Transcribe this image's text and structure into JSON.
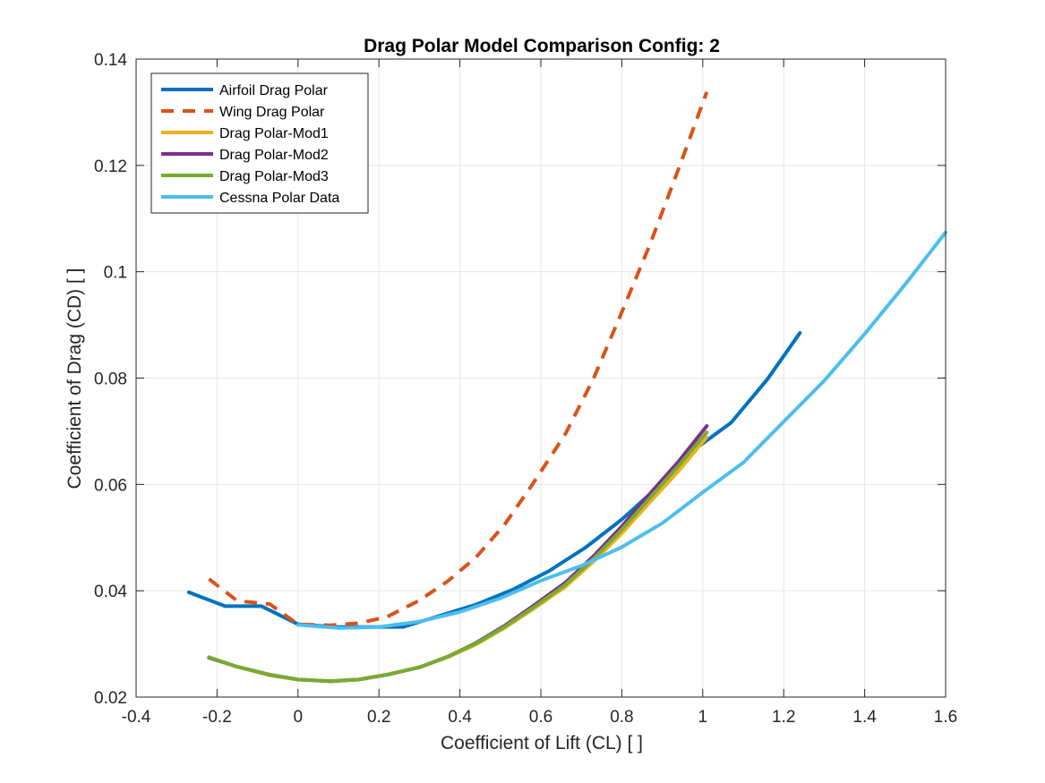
{
  "chart_data": {
    "type": "line",
    "title": "Drag Polar Model Comparison Config: 2",
    "xlabel": "Coefficient of Lift (CL) [ ]",
    "ylabel": "Coefficient of Drag (CD) [ ]",
    "xlim": [
      -0.4,
      1.6
    ],
    "ylim": [
      0.02,
      0.14
    ],
    "xticks": [
      -0.4,
      -0.2,
      0,
      0.2,
      0.4,
      0.6,
      0.8,
      1,
      1.2,
      1.4,
      1.6
    ],
    "xtick_labels": [
      "-0.4",
      "-0.2",
      "0",
      "0.2",
      "0.4",
      "0.6",
      "0.8",
      "1",
      "1.2",
      "1.4",
      "1.6"
    ],
    "yticks": [
      0.02,
      0.04,
      0.06,
      0.08,
      0.1,
      0.12,
      0.14
    ],
    "ytick_labels": [
      "0.02",
      "0.04",
      "0.06",
      "0.08",
      "0.1",
      "0.12",
      "0.14"
    ],
    "grid": true,
    "legend_position": "top-left",
    "series": [
      {
        "name": "Airfoil Drag Polar",
        "color": "#0072BD",
        "style": "solid",
        "x": [
          -0.27,
          -0.18,
          -0.09,
          0,
          0.09,
          0.18,
          0.26,
          0.35,
          0.44,
          0.53,
          0.62,
          0.71,
          0.8,
          0.89,
          0.98,
          1.07,
          1.16,
          1.24
        ],
        "y": [
          0.0397,
          0.0371,
          0.0371,
          0.0337,
          0.0332,
          0.0332,
          0.0332,
          0.0353,
          0.0374,
          0.0402,
          0.0437,
          0.0481,
          0.0534,
          0.0596,
          0.0666,
          0.0716,
          0.0798,
          0.0885
        ]
      },
      {
        "name": "Wing Drag Polar",
        "color": "#D95319",
        "style": "dashed",
        "x": [
          -0.22,
          -0.15,
          -0.07,
          0,
          0.08,
          0.15,
          0.22,
          0.3,
          0.37,
          0.44,
          0.51,
          0.58,
          0.66,
          0.73,
          0.8,
          0.87,
          0.94,
          1.01
        ],
        "y": [
          0.0422,
          0.0381,
          0.0375,
          0.0337,
          0.0335,
          0.0339,
          0.0351,
          0.0382,
          0.0418,
          0.0463,
          0.0524,
          0.0601,
          0.0694,
          0.0799,
          0.0924,
          0.1052,
          0.1193,
          0.1338
        ]
      },
      {
        "name": "Drag Polar-Mod1",
        "color": "#EDB120",
        "style": "solid",
        "x": [
          -0.22,
          -0.15,
          -0.07,
          0,
          0.08,
          0.15,
          0.22,
          0.3,
          0.37,
          0.44,
          0.51,
          0.58,
          0.66,
          0.73,
          0.8,
          0.87,
          0.94,
          1.01
        ],
        "y": [
          0.0274,
          0.0257,
          0.0241,
          0.0233,
          0.023,
          0.0233,
          0.0242,
          0.0256,
          0.0275,
          0.0299,
          0.033,
          0.0365,
          0.0407,
          0.0455,
          0.0508,
          0.0567,
          0.0625,
          0.0689
        ]
      },
      {
        "name": "Drag Polar-Mod2",
        "color": "#7E2F8E",
        "style": "solid",
        "x": [
          -0.22,
          -0.15,
          -0.07,
          0,
          0.08,
          0.15,
          0.22,
          0.3,
          0.37,
          0.44,
          0.51,
          0.58,
          0.66,
          0.73,
          0.8,
          0.87,
          0.94,
          1.01
        ],
        "y": [
          0.0274,
          0.0257,
          0.0242,
          0.0233,
          0.023,
          0.0233,
          0.0242,
          0.0256,
          0.0276,
          0.0302,
          0.0334,
          0.0371,
          0.0415,
          0.0465,
          0.0521,
          0.0583,
          0.0643,
          0.071
        ]
      },
      {
        "name": "Drag Polar-Mod3",
        "color": "#77AC30",
        "style": "solid",
        "x": [
          -0.22,
          -0.15,
          -0.07,
          0,
          0.08,
          0.15,
          0.22,
          0.3,
          0.37,
          0.44,
          0.51,
          0.58,
          0.66,
          0.73,
          0.8,
          0.87,
          0.94,
          1.01
        ],
        "y": [
          0.0275,
          0.0257,
          0.0242,
          0.0233,
          0.023,
          0.0233,
          0.0242,
          0.0256,
          0.0276,
          0.0301,
          0.0332,
          0.0368,
          0.0411,
          0.046,
          0.0515,
          0.0575,
          0.0635,
          0.0698
        ]
      },
      {
        "name": "Cessna Polar Data",
        "color": "#4DBEEE",
        "style": "solid",
        "x": [
          0,
          0.1,
          0.2,
          0.3,
          0.4,
          0.5,
          0.6,
          0.7,
          0.8,
          0.9,
          1.0,
          1.1,
          1.2,
          1.3,
          1.4,
          1.5,
          1.6
        ],
        "y": [
          0.0336,
          0.033,
          0.0332,
          0.0342,
          0.036,
          0.0386,
          0.0419,
          0.0447,
          0.0482,
          0.0527,
          0.0585,
          0.0641,
          0.0718,
          0.0795,
          0.0883,
          0.0976,
          0.1074
        ]
      }
    ]
  }
}
